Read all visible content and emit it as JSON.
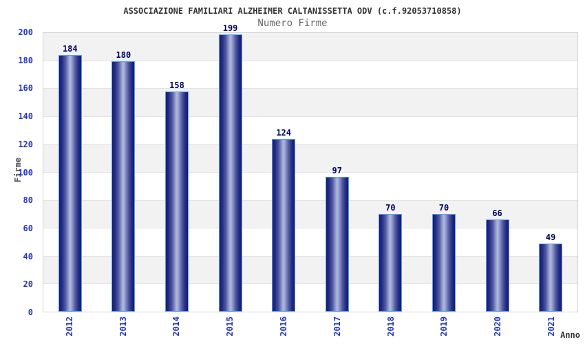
{
  "chart_data": {
    "type": "bar",
    "title": "ASSOCIAZIONE FAMILIARI ALZHEIMER CALTANISSETTA ODV (c.f.92053710858)",
    "subtitle": "Numero Firme",
    "xlabel": "Anno",
    "ylabel": "Firme",
    "categories": [
      "2012",
      "2013",
      "2014",
      "2015",
      "2016",
      "2017",
      "2018",
      "2019",
      "2020",
      "2021"
    ],
    "values": [
      184,
      180,
      158,
      199,
      124,
      97,
      70,
      70,
      66,
      49
    ],
    "ylim": [
      0,
      200
    ],
    "ytick_step": 20,
    "y_tick_labels": [
      "0",
      "20",
      "40",
      "60",
      "80",
      "100",
      "120",
      "140",
      "160",
      "180",
      "200"
    ],
    "legend": "none",
    "grid": "horizontal gridlines every 20 units with alternating gray/white bands",
    "colors": {
      "bar_dark": "#181875",
      "bar_highlight": "#b2badf",
      "bar_border": "#58a0ef",
      "axis_tick_label": "#2233cc",
      "value_label": "#000066",
      "band_gray": "#f2f2f2",
      "gridline": "#e3e3e3",
      "title_text": "#333333",
      "subtitle_text": "#666666"
    }
  }
}
